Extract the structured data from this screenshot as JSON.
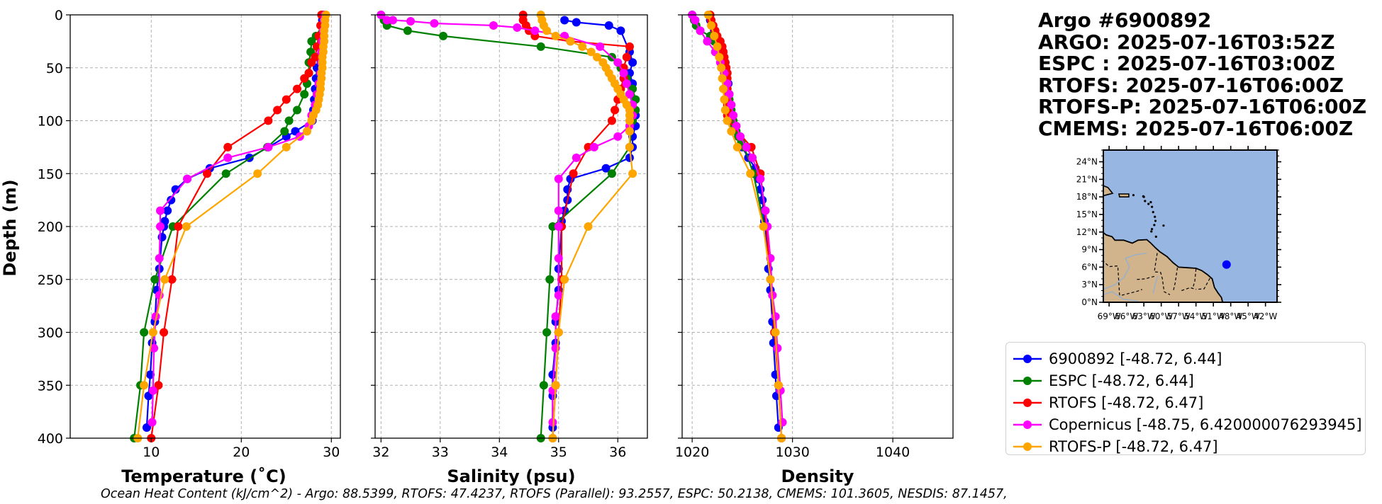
{
  "title_lines": [
    "Argo #6900892",
    "ARGO: 2025-07-16T03:52Z",
    "ESPC : 2025-07-16T03:00Z",
    "RTOFS: 2025-07-16T06:00Z",
    "RTOFS-P: 2025-07-16T06:00Z",
    "CMEMS: 2025-07-16T06:00Z"
  ],
  "footer": "Ocean Heat Content (kJ/cm^2) - Argo: 88.5399,  RTOFS: 47.4237,  RTOFS (Parallel): 93.2557,  ESPC: 50.2138,  CMEMS: 101.3605,  NESDIS: 87.1457,",
  "colors": {
    "argo": "#0000ff",
    "espc": "#008000",
    "rtofs": "#ff0000",
    "copernicus": "#ff00ff",
    "rtofsp": "#ffa500",
    "ocean": "#97b6e1",
    "land": "#d2b48c",
    "grid": "#b0b0b0"
  },
  "legend": [
    {
      "key": "argo",
      "label": "6900892 [-48.72, 6.44]"
    },
    {
      "key": "espc",
      "label": "ESPC [-48.72, 6.44]"
    },
    {
      "key": "rtofs",
      "label": "RTOFS [-48.72, 6.47]"
    },
    {
      "key": "copernicus",
      "label": "Copernicus [-48.75, 6.420000076293945]"
    },
    {
      "key": "rtofsp",
      "label": "RTOFS-P [-48.72, 6.47]"
    }
  ],
  "map": {
    "lat_labels": [
      "24°N",
      "21°N",
      "18°N",
      "15°N",
      "12°N",
      "9°N",
      "6°N",
      "3°N",
      "0°N"
    ],
    "lon_labels": [
      "69°W",
      "66°W",
      "63°W",
      "60°W",
      "57°W",
      "54°W",
      "51°W",
      "48°W",
      "45°W",
      "42°W"
    ],
    "lon_range": [
      -70,
      -40
    ],
    "lat_range": [
      0,
      26
    ],
    "float_position": [
      -48.72,
      6.44
    ]
  },
  "chart_data": [
    {
      "type": "line",
      "title": "",
      "xlabel": "Temperature (˚C)",
      "ylabel": "Depth (m)",
      "xlim": [
        1,
        31
      ],
      "ylim": [
        400,
        0
      ],
      "xticks": [
        10,
        20,
        30
      ],
      "yticks": [
        0,
        50,
        100,
        150,
        200,
        250,
        300,
        350,
        400
      ],
      "grid": true,
      "series": [
        {
          "name": "6900892",
          "key": "argo",
          "depth": [
            0,
            5,
            10,
            20,
            30,
            40,
            50,
            60,
            70,
            80,
            90,
            100,
            110,
            115,
            125,
            135,
            145,
            155,
            165,
            175,
            185,
            195,
            200,
            210,
            240,
            260,
            290,
            310,
            340,
            360,
            390
          ],
          "values": [
            29.0,
            29.0,
            28.9,
            28.8,
            28.6,
            28.5,
            28.4,
            28.3,
            28.2,
            28.1,
            28.0,
            27.9,
            26.0,
            25.0,
            23.0,
            20.9,
            16.5,
            14.0,
            12.7,
            12.2,
            11.8,
            11.5,
            11.4,
            11.2,
            10.9,
            10.6,
            10.4,
            10.1,
            9.9,
            9.7,
            9.5
          ]
        },
        {
          "name": "ESPC",
          "key": "espc",
          "depth": [
            0,
            10,
            20,
            25,
            35,
            45,
            55,
            65,
            75,
            90,
            100,
            110,
            125,
            150,
            200,
            250,
            300,
            350,
            400
          ],
          "values": [
            29.2,
            29.0,
            28.3,
            27.8,
            27.7,
            27.5,
            27.5,
            27.3,
            27.0,
            26.2,
            25.3,
            24.8,
            22.9,
            18.3,
            12.4,
            10.4,
            9.2,
            8.8,
            8.1
          ]
        },
        {
          "name": "RTOFS",
          "key": "rtofs",
          "depth": [
            0,
            10,
            20,
            30,
            40,
            45,
            55,
            60,
            70,
            80,
            90,
            100,
            125,
            150,
            200,
            250,
            300,
            350,
            400
          ],
          "values": [
            28.9,
            28.8,
            28.6,
            28.4,
            28.2,
            27.8,
            27.5,
            27.0,
            26.2,
            25.0,
            24.0,
            23.0,
            18.5,
            16.2,
            13.0,
            12.3,
            11.4,
            10.8,
            10.0
          ]
        },
        {
          "name": "Copernicus",
          "key": "copernicus",
          "depth": [
            0,
            5,
            15,
            25,
            35,
            45,
            55,
            65,
            75,
            85,
            95,
            105,
            115,
            125,
            135,
            155,
            185,
            200,
            230,
            265,
            285,
            315,
            355,
            385
          ],
          "values": [
            29.3,
            29.2,
            29.1,
            29.0,
            28.9,
            28.9,
            28.8,
            28.6,
            28.4,
            28.2,
            27.8,
            27.5,
            26.5,
            23.0,
            18.5,
            14.0,
            11.0,
            11.0,
            10.9,
            10.9,
            10.5,
            10.3,
            10.2,
            10.1
          ]
        },
        {
          "name": "RTOFS-P",
          "key": "rtofsp",
          "depth": [
            0,
            5,
            10,
            15,
            20,
            25,
            30,
            35,
            40,
            45,
            50,
            55,
            60,
            65,
            70,
            75,
            80,
            85,
            90,
            95,
            100,
            110,
            125,
            150,
            200,
            250,
            300,
            350,
            400
          ],
          "values": [
            29.4,
            29.3,
            29.3,
            29.2,
            29.2,
            29.2,
            29.1,
            29.1,
            29.0,
            29.0,
            29.0,
            28.9,
            28.9,
            28.8,
            28.8,
            28.7,
            28.6,
            28.5,
            28.3,
            28.0,
            27.8,
            27.3,
            25.0,
            21.8,
            13.9,
            11.5,
            10.2,
            9.2,
            8.5
          ]
        }
      ]
    },
    {
      "type": "line",
      "title": "",
      "xlabel": "Salinity (psu)",
      "ylabel": "",
      "xlim": [
        31.9,
        36.5
      ],
      "ylim": [
        400,
        0
      ],
      "xticks": [
        32,
        33,
        34,
        35,
        36
      ],
      "yticks": [
        0,
        50,
        100,
        150,
        200,
        250,
        300,
        350,
        400
      ],
      "grid": true,
      "series": [
        {
          "name": "6900892",
          "key": "argo",
          "depth": [
            5,
            7,
            10,
            15,
            35,
            45,
            55,
            65,
            75,
            85,
            95,
            105,
            115,
            125,
            135,
            145,
            155,
            165,
            175,
            185,
            195,
            200,
            240,
            260,
            290,
            310,
            340,
            360,
            390
          ],
          "values": [
            35.1,
            35.3,
            35.85,
            36.05,
            36.2,
            36.25,
            36.2,
            36.25,
            36.2,
            36.25,
            36.3,
            36.3,
            36.25,
            36.25,
            36.2,
            35.8,
            35.2,
            35.15,
            35.15,
            35.1,
            35.05,
            35.05,
            35.0,
            35.0,
            34.95,
            34.95,
            34.9,
            34.9,
            34.9
          ]
        },
        {
          "name": "ESPC",
          "key": "espc",
          "depth": [
            0,
            5,
            10,
            15,
            20,
            30,
            40,
            50,
            60,
            70,
            80,
            90,
            100,
            125,
            150,
            200,
            250,
            300,
            350,
            400
          ],
          "values": [
            32.0,
            32.05,
            32.1,
            32.45,
            33.05,
            34.7,
            35.9,
            36.05,
            36.15,
            36.25,
            36.3,
            36.3,
            36.25,
            36.2,
            35.9,
            34.9,
            34.85,
            34.8,
            34.75,
            34.7
          ]
        },
        {
          "name": "RTOFS",
          "key": "rtofs",
          "depth": [
            0,
            5,
            10,
            15,
            20,
            25,
            30,
            40,
            50,
            60,
            70,
            80,
            90,
            100,
            125,
            150,
            200,
            250,
            300,
            350,
            400
          ],
          "values": [
            34.4,
            34.4,
            34.45,
            34.5,
            34.6,
            35.2,
            36.2,
            36.15,
            36.1,
            36.1,
            36.05,
            36.0,
            35.95,
            35.9,
            35.5,
            35.25,
            35.05,
            35.05,
            35.0,
            34.95,
            34.9
          ]
        },
        {
          "name": "Copernicus",
          "key": "copernicus",
          "depth": [
            0,
            5,
            5,
            6,
            8,
            10,
            12,
            15,
            20,
            30,
            45,
            55,
            65,
            75,
            85,
            95,
            105,
            115,
            125,
            135,
            155,
            185,
            200,
            230,
            265,
            285,
            315,
            355,
            385
          ],
          "values": [
            32.0,
            32.1,
            32.2,
            32.5,
            32.9,
            33.9,
            34.3,
            34.6,
            35.1,
            35.7,
            36.0,
            36.1,
            36.15,
            36.2,
            36.25,
            36.25,
            36.2,
            36.0,
            35.6,
            35.3,
            35.0,
            35.0,
            35.0,
            35.0,
            35.0,
            34.95,
            34.95,
            34.9,
            34.9
          ]
        },
        {
          "name": "RTOFS-P",
          "key": "rtofsp",
          "depth": [
            0,
            5,
            10,
            15,
            20,
            25,
            30,
            35,
            40,
            45,
            50,
            55,
            60,
            65,
            70,
            75,
            80,
            85,
            90,
            95,
            100,
            110,
            125,
            150,
            200,
            250,
            300,
            350,
            400
          ],
          "values": [
            34.7,
            34.72,
            34.75,
            34.8,
            34.95,
            35.2,
            35.4,
            35.55,
            35.65,
            35.75,
            35.8,
            35.85,
            35.9,
            35.95,
            36.0,
            36.05,
            36.1,
            36.15,
            36.2,
            36.2,
            36.2,
            36.2,
            36.2,
            36.25,
            35.5,
            35.1,
            35.0,
            34.95,
            34.9
          ]
        }
      ]
    },
    {
      "type": "line",
      "title": "",
      "xlabel": "Density",
      "ylabel": "",
      "xlim": [
        1019,
        1046
      ],
      "ylim": [
        400,
        0
      ],
      "xticks": [
        1020,
        1030,
        1040
      ],
      "yticks": [
        0,
        50,
        100,
        150,
        200,
        250,
        300,
        350,
        400
      ],
      "grid": true,
      "series": [
        {
          "name": "6900892",
          "key": "argo",
          "depth": [
            5,
            15,
            25,
            35,
            45,
            55,
            65,
            75,
            85,
            95,
            105,
            115,
            125,
            135,
            145,
            155,
            165,
            175,
            185,
            195,
            200,
            240,
            260,
            290,
            310,
            340,
            360,
            390
          ],
          "values": [
            1021.8,
            1022.2,
            1022.8,
            1023.1,
            1023.3,
            1023.5,
            1023.6,
            1023.7,
            1023.8,
            1024.0,
            1024.2,
            1024.6,
            1025.0,
            1025.6,
            1026.3,
            1026.6,
            1026.8,
            1027.0,
            1027.1,
            1027.2,
            1027.3,
            1027.6,
            1027.8,
            1028.0,
            1028.1,
            1028.3,
            1028.4,
            1028.6
          ]
        },
        {
          "name": "ESPC",
          "key": "espc",
          "depth": [
            0,
            5,
            10,
            15,
            20,
            25,
            30,
            35,
            40,
            45,
            50,
            55,
            60,
            65,
            70,
            75,
            80,
            85,
            90,
            95,
            100,
            105,
            110,
            115,
            120,
            125,
            150,
            200
          ],
          "values": [
            1020.0,
            1020.2,
            1020.4,
            1020.8,
            1021.8,
            1022.2,
            1022.5,
            1022.7,
            1022.9,
            1023.0,
            1023.1,
            1023.2,
            1023.3,
            1023.4,
            1023.5,
            1023.6,
            1023.7,
            1023.8,
            1023.9,
            1024.0,
            1024.1,
            1024.2,
            1024.4,
            1024.6,
            1024.9,
            1025.2,
            1026.1,
            1027.2
          ]
        },
        {
          "name": "RTOFS",
          "key": "rtofs",
          "depth": [
            0,
            5,
            10,
            15,
            20,
            25,
            30,
            35,
            40,
            45,
            50,
            55,
            60,
            65,
            70,
            75,
            80,
            85,
            90,
            95,
            100,
            125,
            150,
            200,
            250,
            300,
            350,
            400
          ],
          "values": [
            1021.8,
            1021.9,
            1022.1,
            1022.3,
            1022.5,
            1022.8,
            1023.0,
            1023.1,
            1023.2,
            1023.3,
            1023.4,
            1023.5,
            1023.5,
            1023.5,
            1023.5,
            1023.5,
            1023.5,
            1023.5,
            1023.5,
            1023.5,
            1023.6,
            1025.9,
            1026.8,
            1027.4,
            1027.8,
            1028.2,
            1028.6,
            1028.9
          ]
        },
        {
          "name": "Copernicus",
          "key": "copernicus",
          "depth": [
            0,
            5,
            15,
            25,
            35,
            45,
            55,
            65,
            75,
            85,
            95,
            105,
            115,
            125,
            135,
            155,
            185,
            200,
            230,
            265,
            285,
            315,
            355,
            385
          ],
          "values": [
            1020.0,
            1020.3,
            1020.8,
            1021.5,
            1022.3,
            1022.8,
            1023.2,
            1023.5,
            1023.7,
            1023.9,
            1024.1,
            1024.4,
            1024.8,
            1025.4,
            1026.0,
            1026.8,
            1027.3,
            1027.5,
            1027.8,
            1028.0,
            1028.3,
            1028.5,
            1028.8,
            1029.0
          ]
        },
        {
          "name": "RTOFS-P",
          "key": "rtofsp",
          "depth": [
            0,
            10,
            20,
            30,
            40,
            50,
            60,
            70,
            80,
            90,
            100,
            110,
            125,
            150,
            200,
            250,
            300,
            350,
            400
          ],
          "values": [
            1021.6,
            1021.9,
            1022.2,
            1022.5,
            1022.7,
            1022.9,
            1023.0,
            1023.1,
            1023.2,
            1023.3,
            1023.5,
            1023.9,
            1024.5,
            1025.8,
            1027.1,
            1027.8,
            1028.3,
            1028.6,
            1028.9
          ]
        }
      ]
    }
  ]
}
